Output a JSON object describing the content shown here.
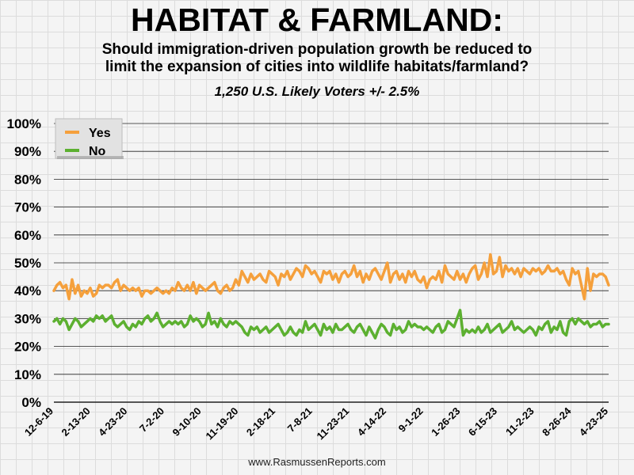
{
  "title": "HABITAT & FARMLAND:",
  "subtitle_line1": "Should immigration-driven population growth be reduced to",
  "subtitle_line2": "limit the expansion of cities into wildlife habitats/farmland?",
  "sample": "1,250 U.S. Likely Voters +/- 2.5%",
  "source": "www.RasmussenReports.com",
  "colors": {
    "yes": "#f5a03c",
    "no": "#5cb030",
    "grid": "#222222",
    "text": "#000000"
  },
  "chart_data": {
    "type": "line",
    "title": "HABITAT & FARMLAND:",
    "xlabel": "",
    "ylabel": "",
    "ylim": [
      0,
      100
    ],
    "y_tick_labels": [
      "0%",
      "10%",
      "20%",
      "30%",
      "40%",
      "50%",
      "60%",
      "70%",
      "80%",
      "90%",
      "100%"
    ],
    "x_tick_labels": [
      "12-6-19",
      "2-13-20",
      "4-23-20",
      "7-2-20",
      "9-10-20",
      "11-19-20",
      "2-18-21",
      "7-8-21",
      "11-23-21",
      "4-14-22",
      "9-1-22",
      "1-26-23",
      "6-15-23",
      "11-2-23",
      "8-26-24",
      "4-23-25"
    ],
    "legend": {
      "position": "top-left",
      "entries": [
        "Yes",
        "No"
      ]
    },
    "grid": true,
    "series": [
      {
        "name": "Yes",
        "values": [
          40,
          42,
          43,
          41,
          42,
          37,
          44,
          39,
          42,
          38,
          40,
          39,
          41,
          38,
          39,
          42,
          41,
          42,
          42,
          41,
          43,
          44,
          40,
          42,
          41,
          40,
          41,
          40,
          41,
          38,
          40,
          40,
          39,
          40,
          41,
          40,
          39,
          40,
          39,
          41,
          40,
          43,
          41,
          40,
          42,
          40,
          43,
          39,
          42,
          41,
          40,
          41,
          42,
          43,
          40,
          39,
          41,
          42,
          40,
          41,
          44,
          42,
          47,
          45,
          43,
          46,
          44,
          45,
          46,
          44,
          43,
          47,
          46,
          45,
          42,
          46,
          45,
          47,
          44,
          46,
          48,
          47,
          45,
          49,
          48,
          46,
          47,
          45,
          43,
          47,
          46,
          47,
          44,
          46,
          43,
          46,
          47,
          45,
          46,
          49,
          45,
          47,
          43,
          46,
          44,
          47,
          48,
          46,
          44,
          47,
          50,
          43,
          46,
          47,
          44,
          46,
          43,
          47,
          45,
          47,
          44,
          43,
          45,
          41,
          44,
          45,
          44,
          47,
          43,
          49,
          46,
          45,
          44,
          47,
          44,
          46,
          43,
          46,
          48,
          49,
          44,
          46,
          50,
          45,
          53,
          46,
          47,
          52,
          45,
          49,
          47,
          48,
          46,
          48,
          45,
          48,
          47,
          46,
          48,
          47,
          48,
          46,
          47,
          49,
          47,
          47,
          48,
          46,
          47,
          44,
          42,
          48,
          46,
          47,
          42,
          37,
          48,
          40,
          46,
          45,
          46,
          46,
          45,
          42
        ],
        "legend_label": "Yes"
      },
      {
        "name": "No",
        "values": [
          29,
          30,
          28,
          30,
          29,
          26,
          28,
          30,
          29,
          27,
          28,
          29,
          30,
          29,
          31,
          30,
          31,
          29,
          30,
          31,
          28,
          27,
          28,
          29,
          27,
          26,
          28,
          27,
          29,
          28,
          30,
          31,
          29,
          30,
          32,
          29,
          27,
          28,
          29,
          28,
          29,
          28,
          29,
          27,
          28,
          31,
          29,
          30,
          29,
          27,
          28,
          32,
          28,
          29,
          27,
          30,
          28,
          27,
          29,
          28,
          29,
          28,
          27,
          25,
          24,
          27,
          26,
          27,
          25,
          26,
          27,
          25,
          26,
          27,
          28,
          26,
          24,
          25,
          27,
          25,
          24,
          26,
          25,
          29,
          26,
          27,
          28,
          26,
          24,
          28,
          26,
          27,
          25,
          28,
          26,
          26,
          27,
          28,
          26,
          25,
          27,
          28,
          26,
          24,
          27,
          25,
          23,
          26,
          28,
          27,
          25,
          24,
          28,
          26,
          27,
          25,
          26,
          29,
          27,
          28,
          27,
          27,
          26,
          27,
          26,
          25,
          27,
          28,
          25,
          26,
          29,
          28,
          27,
          30,
          33,
          24,
          26,
          25,
          26,
          25,
          27,
          25,
          26,
          28,
          25,
          26,
          27,
          28,
          25,
          26,
          27,
          29,
          26,
          27,
          26,
          25,
          26,
          27,
          26,
          24,
          27,
          26,
          28,
          29,
          25,
          27,
          26,
          29,
          25,
          24,
          29,
          30,
          28,
          30,
          29,
          28,
          29,
          27,
          28,
          28,
          29,
          27,
          28,
          28
        ],
        "legend_label": "No"
      }
    ]
  }
}
